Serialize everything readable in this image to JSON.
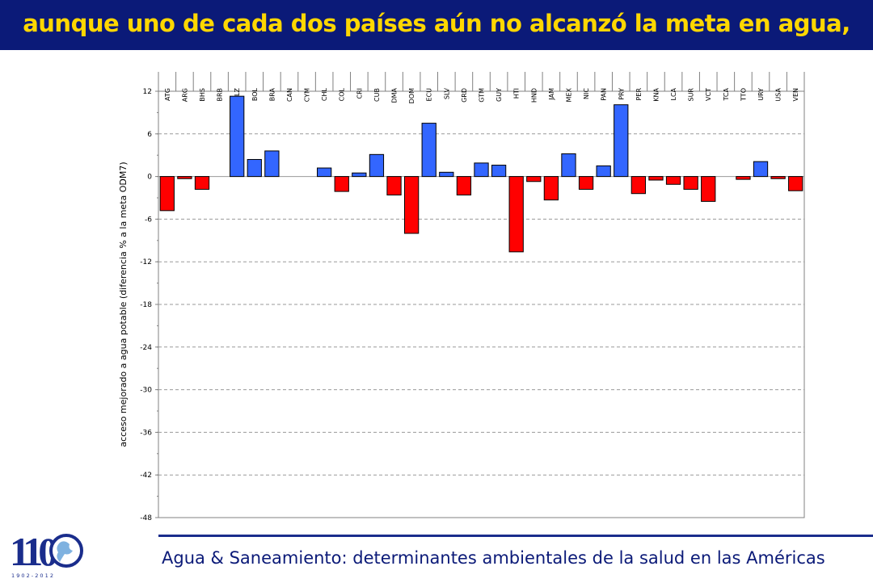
{
  "header": {
    "title": "aunque uno de cada dos países aún no alcanzó la meta en agua,"
  },
  "footer": {
    "text": "Agua & Saneamiento: determinantes ambientales de la salud en las Américas"
  },
  "logo": {
    "main": "110",
    "years": "1 9 0 2 - 2 0 1 2"
  },
  "colors": {
    "title_bg": "#0b1a78",
    "title_text": "#ffd700",
    "positive_bar": "#3366ff",
    "negative_bar": "#ff0000"
  },
  "chart_data": {
    "type": "bar",
    "ylabel": "acceso mejorado a agua potable (diferencia % a la meta ODM7)",
    "xlabel": "",
    "ylim": [
      -48,
      12
    ],
    "yticks": [
      12,
      6,
      0,
      -6,
      -12,
      -18,
      -24,
      -30,
      -36,
      -42,
      -48
    ],
    "grid": true,
    "categories": [
      "ATG",
      "ARG",
      "BHS",
      "BRB",
      "BLZ",
      "BOL",
      "BRA",
      "CAN",
      "CYM",
      "CHL",
      "COL",
      "CRI",
      "CUB",
      "DMA",
      "DOM",
      "ECU",
      "SLV",
      "GRD",
      "GTM",
      "GUY",
      "HTI",
      "HND",
      "JAM",
      "MEX",
      "NIC",
      "PAN",
      "PRY",
      "PER",
      "KNA",
      "LCA",
      "SUR",
      "VCT",
      "TCA",
      "TTO",
      "URY",
      "USA",
      "VEN"
    ],
    "values": [
      -4.8,
      -0.3,
      -1.8,
      0,
      11.3,
      2.4,
      3.6,
      0,
      0,
      1.2,
      -2.1,
      0.5,
      3.1,
      -2.6,
      -8,
      7.5,
      0.6,
      -2.6,
      1.9,
      1.6,
      -10.6,
      -0.7,
      -3.3,
      3.2,
      -1.8,
      1.5,
      10.1,
      -2.4,
      -0.5,
      -1.1,
      -1.8,
      -3.5,
      0,
      -0.4,
      2.1,
      -0.3,
      -2
    ]
  }
}
